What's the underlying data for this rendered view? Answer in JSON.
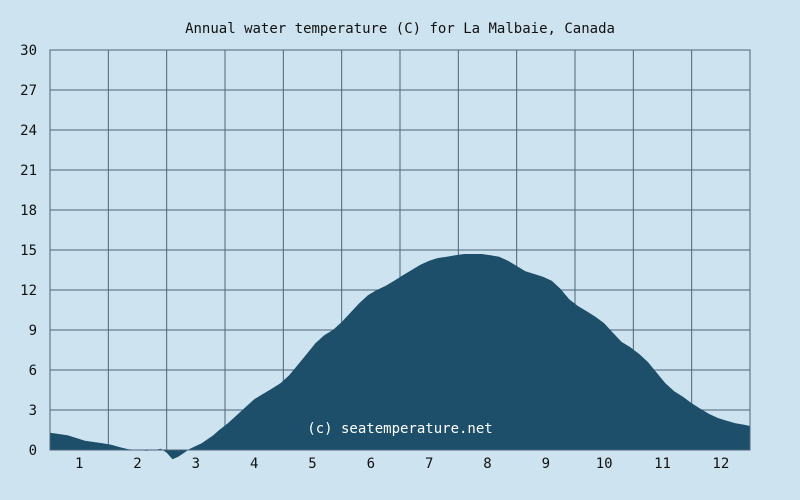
{
  "colors": {
    "background": "#cde3ef",
    "plot_fill": "#1d4f6a",
    "grid": "#4a6478",
    "text": "#111111",
    "watermark": "#ffffff"
  },
  "chart_data": {
    "type": "area",
    "title": "Annual water temperature (C) for La Malbaie, Canada",
    "watermark": "(c) seatemperature.net",
    "xlabel": "",
    "ylabel": "",
    "xlim": [
      0.5,
      12.5
    ],
    "ylim": [
      0,
      30
    ],
    "y_ticks": [
      0,
      3,
      6,
      9,
      12,
      15,
      18,
      21,
      24,
      27,
      30
    ],
    "x_tick_labels": [
      "1",
      "2",
      "3",
      "4",
      "5",
      "6",
      "7",
      "8",
      "9",
      "10",
      "11",
      "12"
    ],
    "grid": true,
    "legend": "none",
    "series": [
      {
        "x": [
          0.5,
          0.65,
          0.8,
          0.95,
          1.1,
          1.25,
          1.4,
          1.55,
          1.7,
          1.85,
          2.0,
          2.15,
          2.3,
          2.4,
          2.5,
          2.6,
          2.7,
          2.8,
          2.9,
          3.0,
          3.1,
          3.2,
          3.3,
          3.4,
          3.55,
          3.7,
          3.85,
          4.0,
          4.15,
          4.3,
          4.45,
          4.6,
          4.75,
          4.9,
          5.05,
          5.2,
          5.35,
          5.5,
          5.65,
          5.8,
          5.95,
          6.1,
          6.25,
          6.4,
          6.55,
          6.7,
          6.85,
          7.0,
          7.15,
          7.3,
          7.45,
          7.6,
          7.75,
          7.9,
          8.05,
          8.2,
          8.35,
          8.5,
          8.65,
          8.8,
          8.95,
          9.1,
          9.25,
          9.4,
          9.55,
          9.7,
          9.85,
          10.0,
          10.15,
          10.3,
          10.45,
          10.6,
          10.75,
          10.9,
          11.05,
          11.2,
          11.35,
          11.5,
          11.65,
          11.8,
          11.95,
          12.1,
          12.25,
          12.4,
          12.5
        ],
        "y": [
          1.3,
          1.2,
          1.1,
          0.9,
          0.7,
          0.6,
          0.5,
          0.4,
          0.2,
          0.05,
          0.0,
          -0.05,
          0.0,
          0.1,
          -0.2,
          -0.7,
          -0.5,
          -0.2,
          0.1,
          0.3,
          0.5,
          0.8,
          1.1,
          1.5,
          2.0,
          2.6,
          3.2,
          3.8,
          4.2,
          4.6,
          5.0,
          5.6,
          6.4,
          7.2,
          8.0,
          8.6,
          9.0,
          9.6,
          10.3,
          11.0,
          11.6,
          12.0,
          12.3,
          12.7,
          13.1,
          13.5,
          13.9,
          14.2,
          14.4,
          14.5,
          14.6,
          14.7,
          14.7,
          14.7,
          14.6,
          14.5,
          14.2,
          13.8,
          13.4,
          13.2,
          13.0,
          12.7,
          12.1,
          11.3,
          10.8,
          10.4,
          10.0,
          9.5,
          8.8,
          8.1,
          7.7,
          7.2,
          6.6,
          5.8,
          5.0,
          4.4,
          4.0,
          3.5,
          3.1,
          2.7,
          2.4,
          2.2,
          2.0,
          1.9,
          1.8
        ]
      }
    ]
  }
}
